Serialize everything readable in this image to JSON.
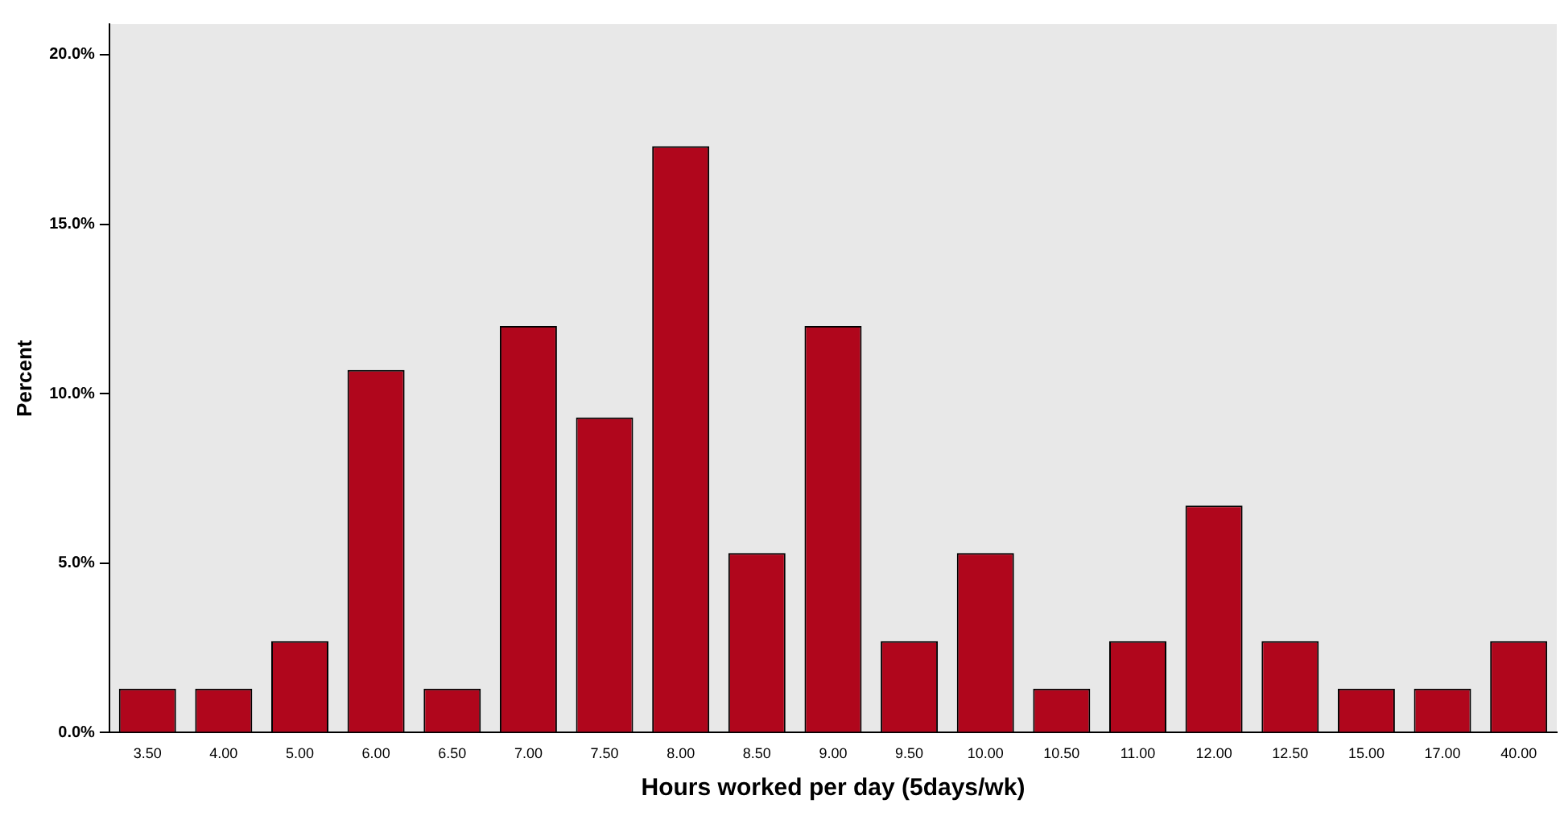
{
  "chart_data": {
    "type": "bar",
    "xlabel": "Hours worked per day (5days/wk)",
    "ylabel": "Percent",
    "categories": [
      "3.50",
      "4.00",
      "5.00",
      "6.00",
      "6.50",
      "7.00",
      "7.50",
      "8.00",
      "8.50",
      "9.00",
      "9.50",
      "10.00",
      "10.50",
      "11.00",
      "12.00",
      "12.50",
      "15.00",
      "17.00",
      "40.00"
    ],
    "values": [
      1.3,
      1.3,
      2.7,
      10.7,
      1.3,
      12.0,
      9.3,
      17.3,
      5.3,
      12.0,
      2.7,
      5.3,
      1.3,
      2.7,
      6.7,
      2.7,
      1.3,
      1.3,
      2.7
    ],
    "color": "#b0061c",
    "ylim": [
      0,
      20.9
    ],
    "yticks": [
      {
        "value": 0,
        "label": "0.0%"
      },
      {
        "value": 5,
        "label": "5.0%"
      },
      {
        "value": 10,
        "label": "10.0%"
      },
      {
        "value": 15,
        "label": "15.0%"
      },
      {
        "value": 20,
        "label": "20.0%"
      }
    ],
    "grid": false,
    "legend": false
  }
}
